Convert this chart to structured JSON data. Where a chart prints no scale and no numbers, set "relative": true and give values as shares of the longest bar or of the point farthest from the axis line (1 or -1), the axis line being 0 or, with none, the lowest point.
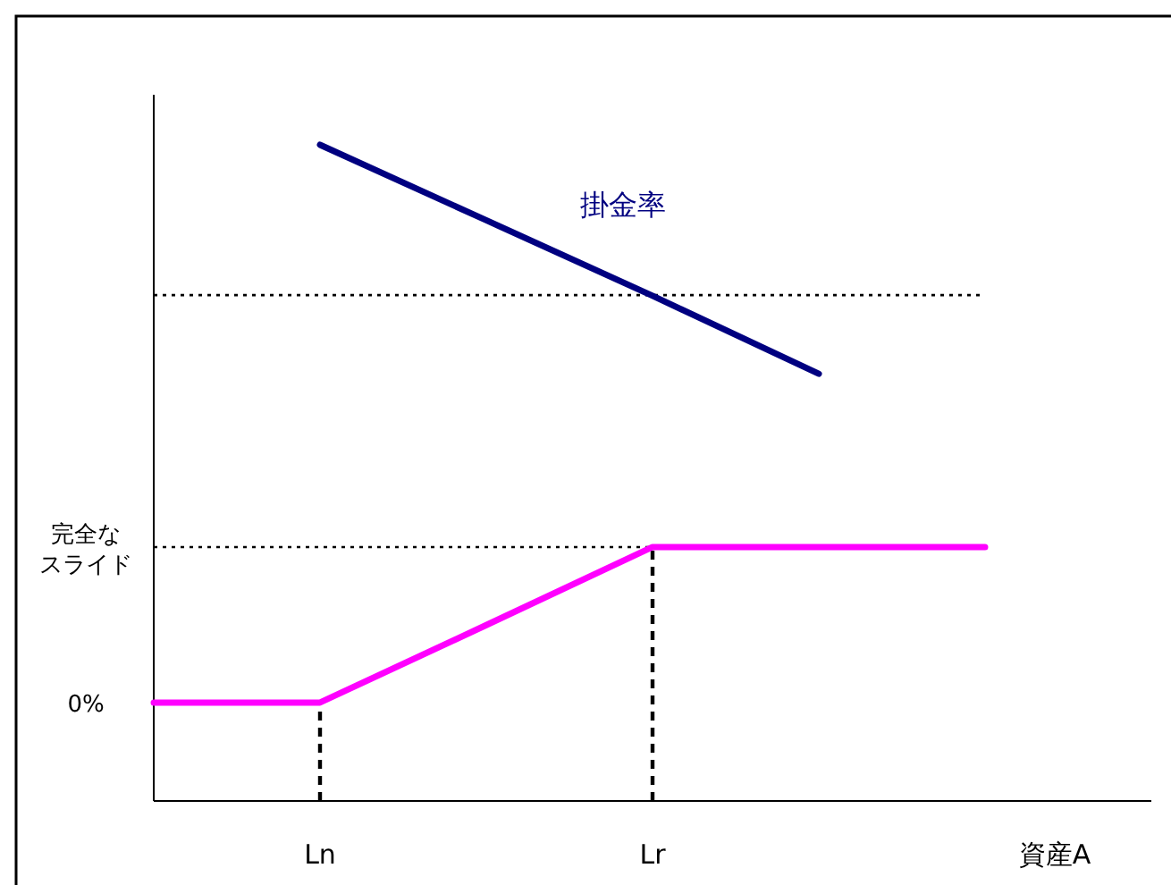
{
  "chart_data": {
    "type": "line",
    "xlabel": "資産A",
    "relative": true,
    "categories": [
      null,
      "Ln",
      null,
      "Lr",
      null,
      null
    ],
    "series": [
      {
        "name": "掛金率",
        "color": "#000080",
        "values": [
          null,
          1,
          0.885,
          0.77,
          0.651,
          null
        ]
      },
      {
        "color": "#ff00ff",
        "values": [
          0.15,
          0.15,
          0.268,
          0.387,
          0.387,
          0.387
        ]
      }
    ],
    "annotations": [
      "0%"
    ],
    "ref_lines": [
      {
        "axis": "y",
        "value": 0.771,
        "line_style": "dotted"
      },
      {
        "axis": "y",
        "value": 0.387,
        "line_style": "dotted",
        "label": "完全なスライド"
      },
      {
        "axis": "x",
        "value": "Ln",
        "line_style": "dashed"
      },
      {
        "axis": "x",
        "value": "Lr",
        "line_style": "dashed"
      }
    ],
    "grid": false,
    "marker": "none",
    "line_style": "solid"
  }
}
